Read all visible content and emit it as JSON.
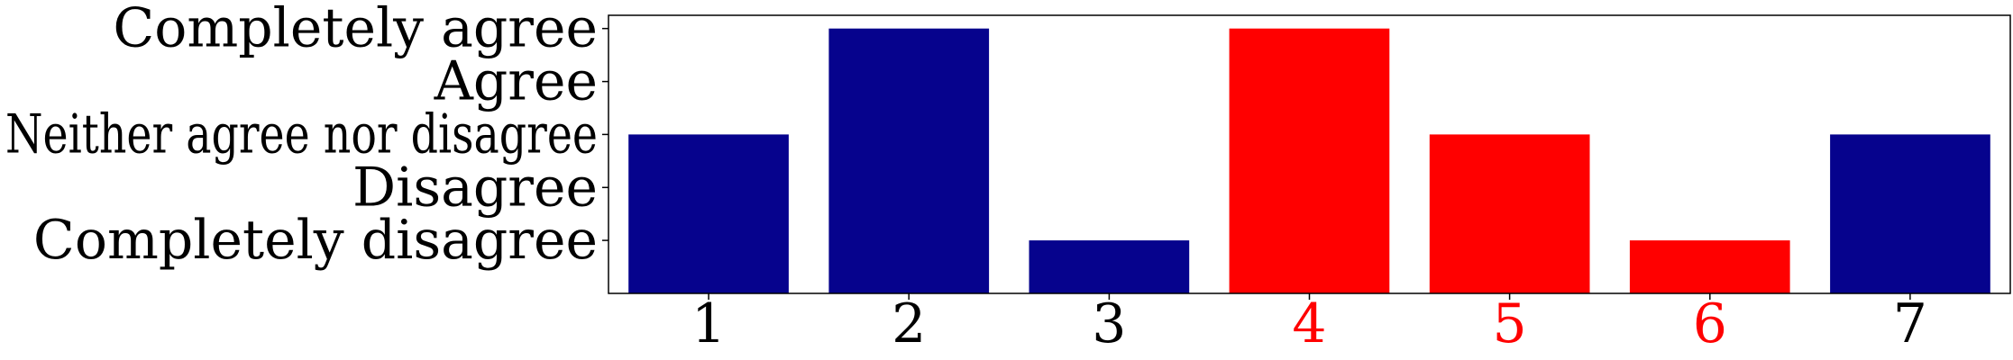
{
  "chart_data": {
    "type": "bar",
    "categories": [
      "1",
      "2",
      "3",
      "4",
      "5",
      "6",
      "7"
    ],
    "values": [
      3,
      5,
      1,
      5,
      3,
      1,
      3
    ],
    "ylim": [
      0,
      5.25
    ],
    "yticks": [
      1,
      2,
      3,
      4,
      5
    ],
    "ytick_labels": [
      "Completely disagree",
      "Disagree",
      "Neither agree nor disagree",
      "Agree",
      "Completely agree"
    ],
    "bar_colors": [
      "#06038D",
      "#06038D",
      "#06038D",
      "#FF0000",
      "#FF0000",
      "#FF0000",
      "#06038D"
    ],
    "xtick_colors": [
      "#000000",
      "#000000",
      "#000000",
      "#FF0000",
      "#FF0000",
      "#FF0000",
      "#000000"
    ],
    "grid": false,
    "legend": "none"
  }
}
